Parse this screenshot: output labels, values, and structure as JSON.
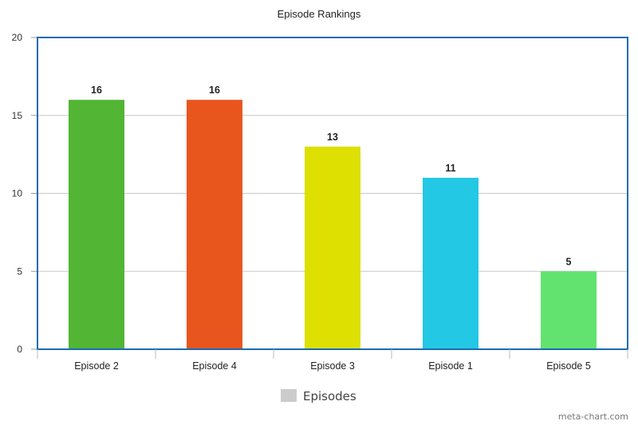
{
  "chart_data": {
    "type": "bar",
    "title": "Episode Rankings",
    "xlabel": "",
    "ylabel": "",
    "categories": [
      "Episode 2",
      "Episode 4",
      "Episode 3",
      "Episode 1",
      "Episode 5"
    ],
    "values": [
      16,
      16,
      13,
      11,
      5
    ],
    "data_labels": [
      "16",
      "16",
      "13",
      "11",
      "5"
    ],
    "bar_colors": [
      "#52b533",
      "#e8561e",
      "#dde000",
      "#23c8e4",
      "#62e36f"
    ],
    "ylim": [
      0,
      20
    ],
    "yticks": [
      "0",
      "5",
      "10",
      "15",
      "20"
    ],
    "grid": true,
    "legend": {
      "label": "Episodes",
      "swatch_color": "#cccccc",
      "position": "bottom-center"
    },
    "frame_color": "#1a6bb5"
  },
  "watermark": "meta-chart.com"
}
